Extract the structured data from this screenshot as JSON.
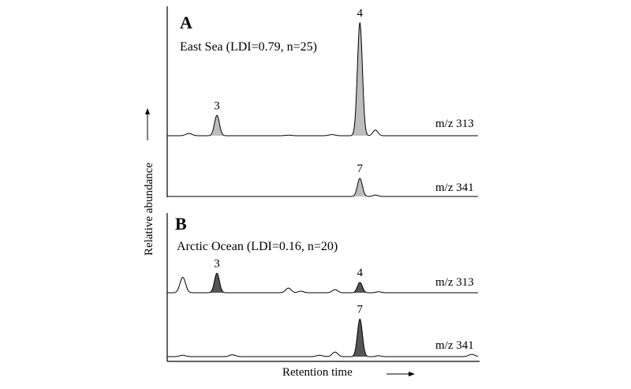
{
  "figure": {
    "y_axis_label": "Relative abundance",
    "x_axis_label": "Retention time"
  },
  "chart_data": [
    {
      "type": "line",
      "panel_letter": "A",
      "sample_label": "East Sea (LDI=0.79, n=25)",
      "peak_fill": "#bdbdbd",
      "traces": [
        {
          "name": "m/z 313",
          "peaks": [
            {
              "label": "",
              "rt": 0.07,
              "height": 0.02,
              "width": 0.01
            },
            {
              "label": "3",
              "rt": 0.16,
              "height": 0.18,
              "width": 0.008
            },
            {
              "label": "",
              "rt": 0.39,
              "height": 0.005,
              "width": 0.01
            },
            {
              "label": "",
              "rt": 0.53,
              "height": 0.01,
              "width": 0.01
            },
            {
              "label": "4",
              "rt": 0.62,
              "height": 1.0,
              "width": 0.008
            },
            {
              "label": "",
              "rt": 0.67,
              "height": 0.05,
              "width": 0.008
            }
          ]
        },
        {
          "name": "m/z 341",
          "peaks": [
            {
              "label": "7",
              "rt": 0.62,
              "height": 0.38,
              "width": 0.008
            },
            {
              "label": "",
              "rt": 0.67,
              "height": 0.03,
              "width": 0.008
            }
          ]
        }
      ]
    },
    {
      "type": "line",
      "panel_letter": "B",
      "sample_label": "Arctic Ocean (LDI=0.16, n=20)",
      "peak_fill": "#555555",
      "traces": [
        {
          "name": "m/z 313",
          "peaks": [
            {
              "label": "",
              "rt": 0.05,
              "height": 0.3,
              "width": 0.009
            },
            {
              "label": "3",
              "rt": 0.16,
              "height": 0.38,
              "width": 0.008
            },
            {
              "label": "",
              "rt": 0.39,
              "height": 0.09,
              "width": 0.009
            },
            {
              "label": "",
              "rt": 0.43,
              "height": 0.03,
              "width": 0.009
            },
            {
              "label": "",
              "rt": 0.54,
              "height": 0.06,
              "width": 0.009
            },
            {
              "label": "4",
              "rt": 0.62,
              "height": 0.2,
              "width": 0.008
            },
            {
              "label": "",
              "rt": 0.68,
              "height": 0.02,
              "width": 0.008
            }
          ]
        },
        {
          "name": "m/z 341",
          "peaks": [
            {
              "label": "",
              "rt": 0.05,
              "height": 0.03,
              "width": 0.01
            },
            {
              "label": "",
              "rt": 0.21,
              "height": 0.04,
              "width": 0.01
            },
            {
              "label": "",
              "rt": 0.49,
              "height": 0.03,
              "width": 0.01
            },
            {
              "label": "",
              "rt": 0.54,
              "height": 0.1,
              "width": 0.009
            },
            {
              "label": "7",
              "rt": 0.62,
              "height": 0.82,
              "width": 0.008
            },
            {
              "label": "",
              "rt": 0.68,
              "height": 0.02,
              "width": 0.008
            },
            {
              "label": "",
              "rt": 0.98,
              "height": 0.05,
              "width": 0.01
            }
          ]
        }
      ]
    }
  ]
}
